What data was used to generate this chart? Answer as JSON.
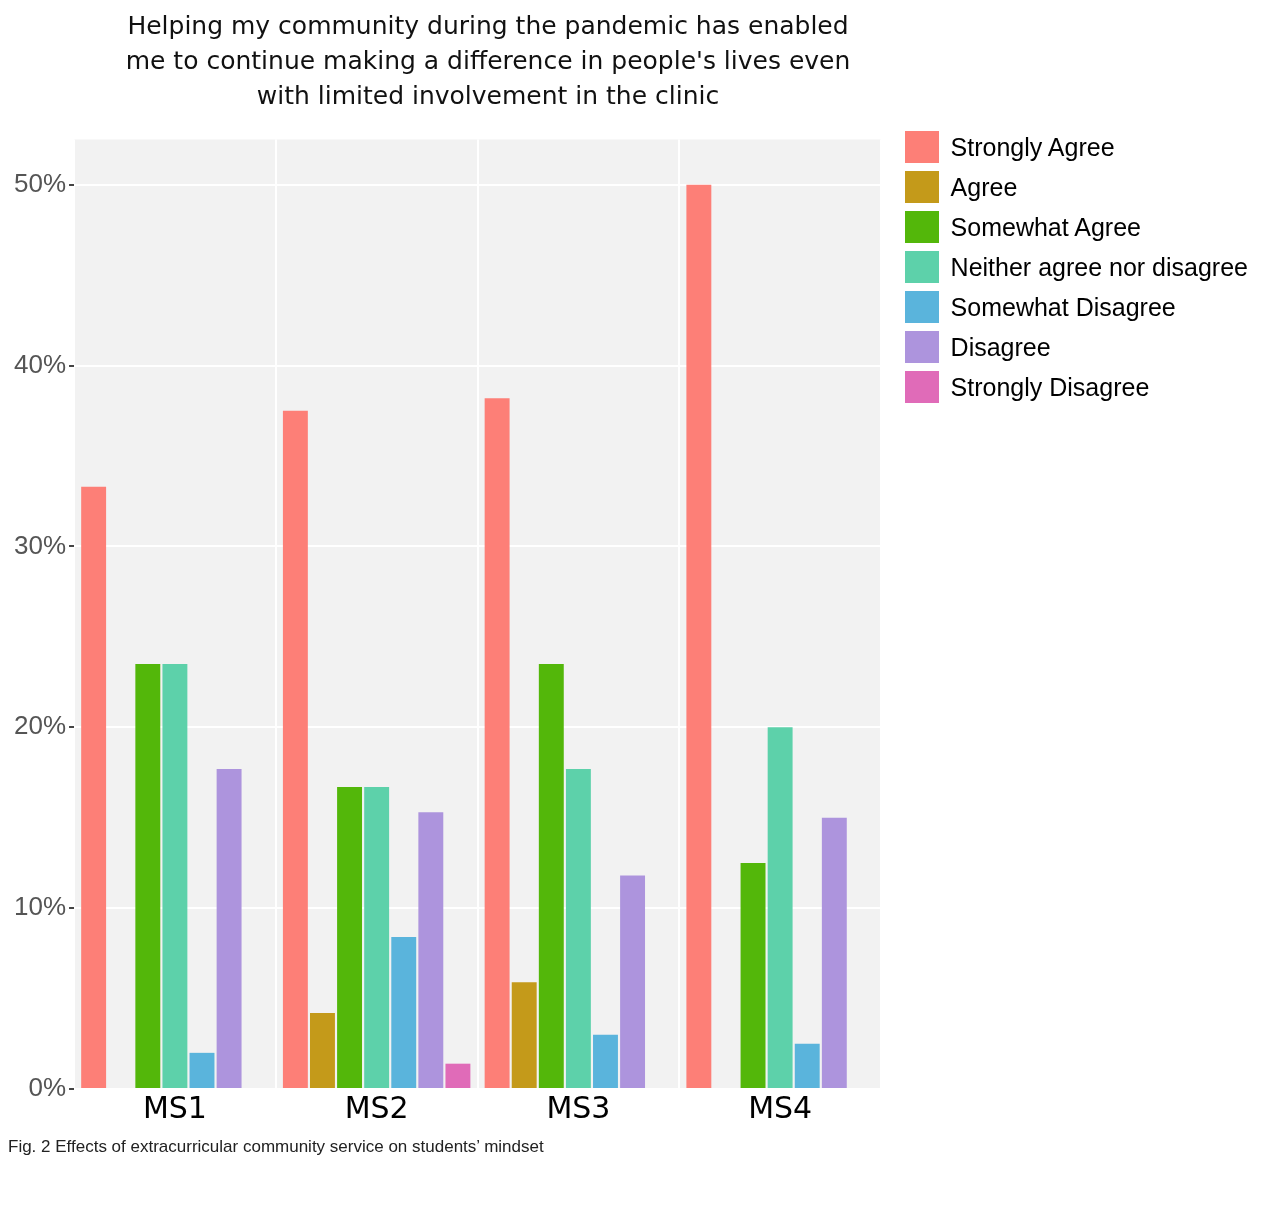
{
  "chart_data": {
    "type": "bar",
    "title": "Helping my community during the pandemic has enabled me to continue making a difference in people's lives even with limited involvement in the clinic",
    "categories": [
      "MS1",
      "MS2",
      "MS3",
      "MS4"
    ],
    "series": [
      {
        "name": "Strongly Agree",
        "color": "#fd7f77",
        "values": [
          33.3,
          37.5,
          38.2,
          50
        ]
      },
      {
        "name": "Agree",
        "color": "#c49a1a",
        "values": [
          0,
          4.2,
          5.9,
          0
        ]
      },
      {
        "name": "Somewhat Agree",
        "color": "#53b70a",
        "values": [
          23.5,
          16.7,
          23.5,
          12.5
        ]
      },
      {
        "name": "Neither agree nor disagree",
        "color": "#5dd1aa",
        "values": [
          23.5,
          16.7,
          17.7,
          20
        ]
      },
      {
        "name": "Somewhat Disagree",
        "color": "#5ab4dc",
        "values": [
          2,
          8.4,
          3,
          2.5
        ]
      },
      {
        "name": "Disagree",
        "color": "#ad94dd",
        "values": [
          17.7,
          15.3,
          11.8,
          15
        ]
      },
      {
        "name": "Strongly Disagree",
        "color": "#e06bb8",
        "values": [
          0,
          1.4,
          0,
          0
        ]
      }
    ],
    "ylim": [
      0,
      52.5
    ],
    "yticks": [
      {
        "value": 0,
        "label": "0%"
      },
      {
        "value": 10,
        "label": "10%"
      },
      {
        "value": 20,
        "label": "20%"
      },
      {
        "value": 30,
        "label": "30%"
      },
      {
        "value": 40,
        "label": "40%"
      },
      {
        "value": 50,
        "label": "50%"
      }
    ],
    "grid": true,
    "legend": "right",
    "annotations": [
      "Fig. 2 Effects of extracurricular community service on students’ mindset"
    ]
  }
}
